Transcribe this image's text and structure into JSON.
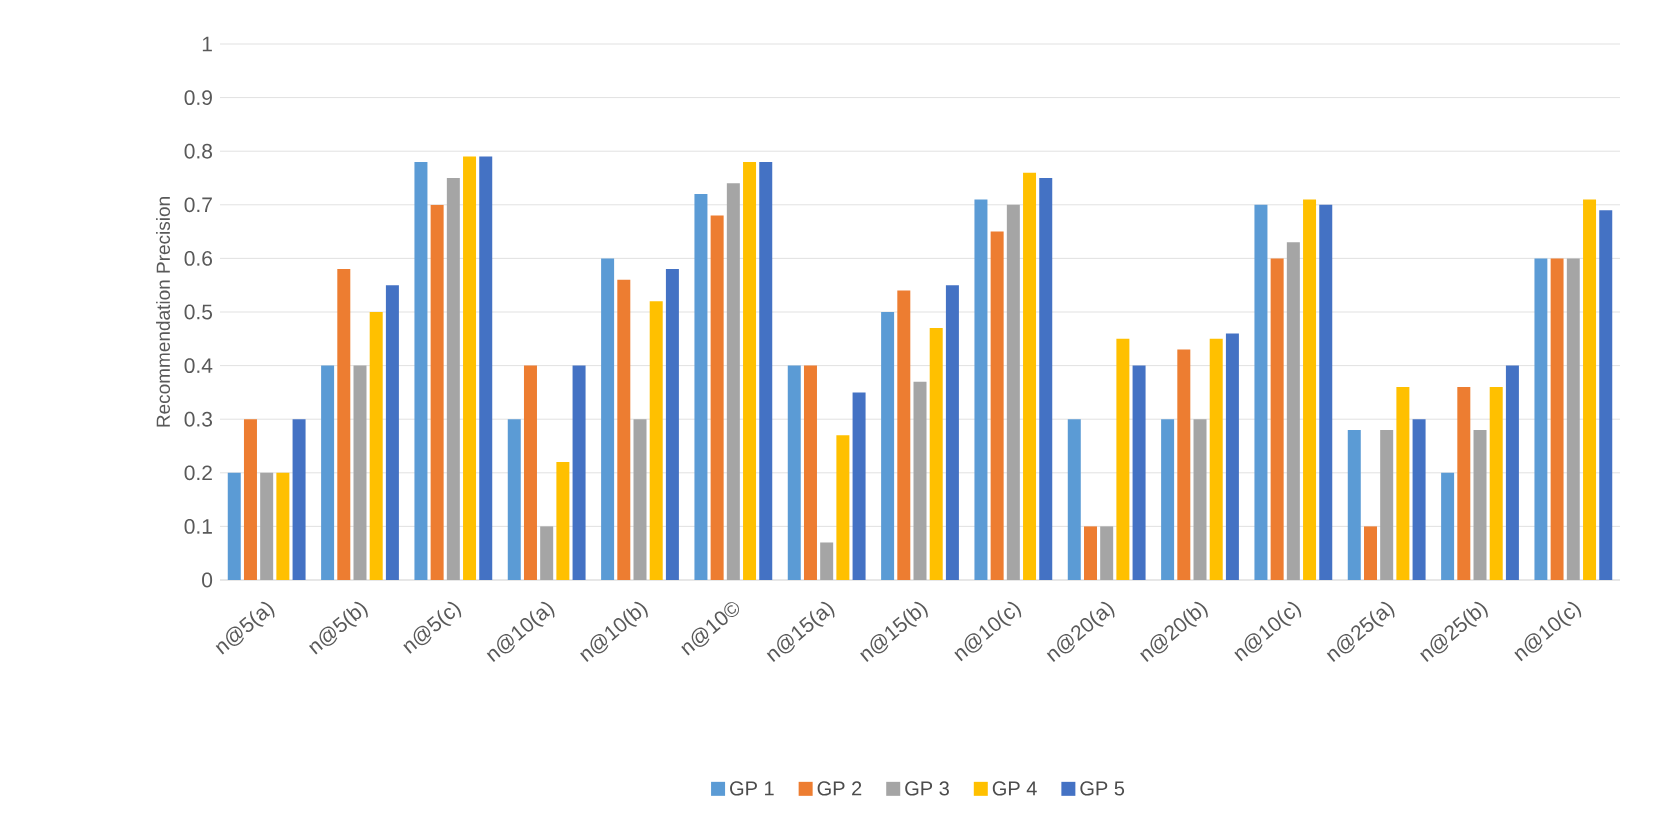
{
  "chart_data": {
    "type": "bar",
    "ylabel": "Recommendation Precision",
    "categories": [
      "n@5(a)",
      "n@5(b)",
      "n@5(c)",
      "n@10(a)",
      "n@10(b)",
      "n@10©",
      "n@15(a)",
      "n@15(b)",
      "n@10(c)",
      "n@20(a)",
      "n@20(b)",
      "n@10(c)",
      "n@25(a)",
      "n@25(b)",
      "n@10(c)"
    ],
    "series": [
      {
        "name": "GP 1",
        "color": "#5b9bd5",
        "values": [
          0.2,
          0.4,
          0.78,
          0.3,
          0.6,
          0.72,
          0.4,
          0.5,
          0.71,
          0.3,
          0.3,
          0.7,
          0.28,
          0.2,
          0.6
        ]
      },
      {
        "name": "GP 2",
        "color": "#ed7d31",
        "values": [
          0.3,
          0.58,
          0.7,
          0.4,
          0.56,
          0.68,
          0.4,
          0.54,
          0.65,
          0.1,
          0.43,
          0.6,
          0.1,
          0.36,
          0.6
        ]
      },
      {
        "name": "GP 3",
        "color": "#a5a5a5",
        "values": [
          0.2,
          0.4,
          0.75,
          0.1,
          0.3,
          0.74,
          0.07,
          0.37,
          0.7,
          0.1,
          0.3,
          0.63,
          0.28,
          0.28,
          0.6
        ]
      },
      {
        "name": "GP 4",
        "color": "#ffc000",
        "values": [
          0.2,
          0.5,
          0.79,
          0.22,
          0.52,
          0.78,
          0.27,
          0.47,
          0.76,
          0.45,
          0.45,
          0.71,
          0.36,
          0.36,
          0.71
        ]
      },
      {
        "name": "GP 5",
        "color": "#4472c4",
        "values": [
          0.3,
          0.55,
          0.79,
          0.4,
          0.58,
          0.78,
          0.35,
          0.55,
          0.75,
          0.4,
          0.46,
          0.7,
          0.3,
          0.4,
          0.69
        ]
      }
    ],
    "ylim": [
      0,
      1
    ],
    "yticks": [
      0,
      0.1,
      0.2,
      0.3,
      0.4,
      0.5,
      0.6,
      0.7,
      0.8,
      0.9,
      1
    ],
    "grid": "y",
    "legend": "bottom"
  }
}
